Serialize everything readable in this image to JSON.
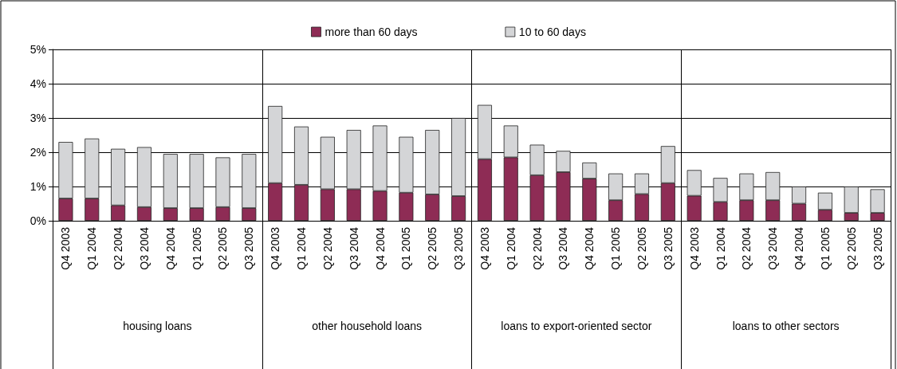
{
  "chart_data": {
    "type": "bar",
    "stacked": true,
    "categories": [
      "Q4 2003",
      "Q1 2004",
      "Q2 2004",
      "Q3 2004",
      "Q4 2004",
      "Q1 2005",
      "Q2 2005",
      "Q3 2005",
      "Q4 2003",
      "Q1 2004",
      "Q2 2004",
      "Q3 2004",
      "Q4 2004",
      "Q1 2005",
      "Q2 2005",
      "Q3 2005",
      "Q4 2003",
      "Q1 2004",
      "Q2 2004",
      "Q3 2004",
      "Q4 2004",
      "Q1 2005",
      "Q2 2005",
      "Q3 2005",
      "Q4 2003",
      "Q1 2004",
      "Q2 2004",
      "Q3 2004",
      "Q4 2004",
      "Q1 2005",
      "Q2 2005",
      "Q3 2005"
    ],
    "series": [
      {
        "name": "more than 60 days",
        "color": "#8e2c55",
        "values": [
          0.65,
          0.65,
          0.45,
          0.4,
          0.37,
          0.37,
          0.4,
          0.37,
          1.1,
          1.05,
          0.92,
          0.92,
          0.87,
          0.82,
          0.77,
          0.72,
          1.8,
          1.85,
          1.33,
          1.42,
          1.23,
          0.6,
          0.78,
          1.1,
          0.73,
          0.55,
          0.6,
          0.6,
          0.5,
          0.32,
          0.23,
          0.23
        ]
      },
      {
        "name": "10 to 60 days",
        "color": "#d4d5d7",
        "values": [
          1.65,
          1.75,
          1.65,
          1.75,
          1.58,
          1.58,
          1.45,
          1.58,
          2.25,
          1.7,
          1.53,
          1.73,
          1.91,
          1.63,
          1.88,
          2.28,
          1.58,
          0.93,
          0.89,
          0.62,
          0.47,
          0.78,
          0.6,
          1.08,
          0.75,
          0.7,
          0.78,
          0.82,
          0.5,
          0.5,
          0.77,
          0.69
        ]
      }
    ],
    "annotations": [
      "housing loans",
      "other household loans",
      "loans to export-oriented sector",
      "loans to other sectors"
    ],
    "ylim": [
      0,
      5
    ],
    "yticks": [
      {
        "value": 0,
        "label": "0%"
      },
      {
        "value": 1,
        "label": "1%"
      },
      {
        "value": 2,
        "label": "2%"
      },
      {
        "value": 3,
        "label": "3%"
      },
      {
        "value": 4,
        "label": "4%"
      },
      {
        "value": 5,
        "label": "5%"
      }
    ],
    "grid": "y",
    "legend": "top"
  }
}
